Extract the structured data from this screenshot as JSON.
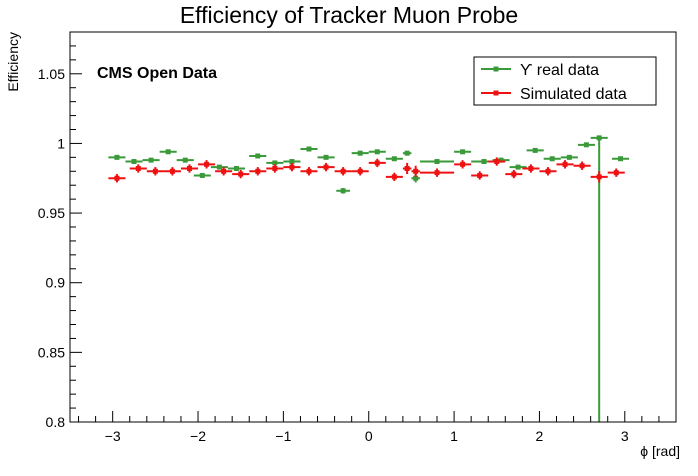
{
  "chart_data": {
    "type": "scatter",
    "title": "Efficiency of Tracker Muon Probe",
    "xlabel": "ϕ [rad]",
    "ylabel": "Efficiency",
    "xlim": [
      -3.5,
      3.6
    ],
    "ylim": [
      0.8,
      1.08
    ],
    "x_ticks": [
      -3,
      -2,
      -1,
      0,
      1,
      2,
      3
    ],
    "x_tick_labels": [
      "−3",
      "−2",
      "−1",
      "0",
      "1",
      "2",
      "3"
    ],
    "y_ticks": [
      0.8,
      0.85,
      0.9,
      0.95,
      1,
      1.05
    ],
    "y_tick_labels": [
      "0.8",
      "0.85",
      "0.9",
      "0.95",
      "1",
      "1.05"
    ],
    "grid": false,
    "legend_position": "top-right",
    "annotation": "CMS Open Data",
    "series": [
      {
        "name": "ϒ real data",
        "color": "#3a9a3a",
        "points": [
          {
            "x": -2.95,
            "y": 0.99,
            "xerr": 0.1,
            "yerr_lo": 0.001,
            "yerr_hi": 0.001
          },
          {
            "x": -2.75,
            "y": 0.987,
            "xerr": 0.1,
            "yerr_lo": 0.001,
            "yerr_hi": 0.001
          },
          {
            "x": -2.55,
            "y": 0.988,
            "xerr": 0.1,
            "yerr_lo": 0.001,
            "yerr_hi": 0.001
          },
          {
            "x": -2.35,
            "y": 0.994,
            "xerr": 0.1,
            "yerr_lo": 0.001,
            "yerr_hi": 0.001
          },
          {
            "x": -2.15,
            "y": 0.988,
            "xerr": 0.1,
            "yerr_lo": 0.001,
            "yerr_hi": 0.001
          },
          {
            "x": -1.95,
            "y": 0.977,
            "xerr": 0.1,
            "yerr_lo": 0.001,
            "yerr_hi": 0.001
          },
          {
            "x": -1.75,
            "y": 0.983,
            "xerr": 0.1,
            "yerr_lo": 0.001,
            "yerr_hi": 0.001
          },
          {
            "x": -1.55,
            "y": 0.982,
            "xerr": 0.1,
            "yerr_lo": 0.001,
            "yerr_hi": 0.001
          },
          {
            "x": -1.3,
            "y": 0.991,
            "xerr": 0.1,
            "yerr_lo": 0.001,
            "yerr_hi": 0.001
          },
          {
            "x": -1.1,
            "y": 0.986,
            "xerr": 0.1,
            "yerr_lo": 0.001,
            "yerr_hi": 0.001
          },
          {
            "x": -0.9,
            "y": 0.987,
            "xerr": 0.1,
            "yerr_lo": 0.001,
            "yerr_hi": 0.001
          },
          {
            "x": -0.7,
            "y": 0.996,
            "xerr": 0.1,
            "yerr_lo": 0.001,
            "yerr_hi": 0.001
          },
          {
            "x": -0.5,
            "y": 0.99,
            "xerr": 0.1,
            "yerr_lo": 0.001,
            "yerr_hi": 0.001
          },
          {
            "x": -0.3,
            "y": 0.966,
            "xerr": 0.08,
            "yerr_lo": 0.002,
            "yerr_hi": 0.002
          },
          {
            "x": -0.1,
            "y": 0.993,
            "xerr": 0.1,
            "yerr_lo": 0.001,
            "yerr_hi": 0.001
          },
          {
            "x": 0.1,
            "y": 0.994,
            "xerr": 0.1,
            "yerr_lo": 0.001,
            "yerr_hi": 0.001
          },
          {
            "x": 0.3,
            "y": 0.989,
            "xerr": 0.1,
            "yerr_lo": 0.001,
            "yerr_hi": 0.001
          },
          {
            "x": 0.45,
            "y": 0.993,
            "xerr": 0.05,
            "yerr_lo": 0.001,
            "yerr_hi": 0.001
          },
          {
            "x": 0.55,
            "y": 0.975,
            "xerr": 0.05,
            "yerr_lo": 0.003,
            "yerr_hi": 0.003
          },
          {
            "x": 0.8,
            "y": 0.987,
            "xerr": 0.2,
            "yerr_lo": 0.001,
            "yerr_hi": 0.001
          },
          {
            "x": 1.1,
            "y": 0.994,
            "xerr": 0.1,
            "yerr_lo": 0.001,
            "yerr_hi": 0.001
          },
          {
            "x": 1.35,
            "y": 0.987,
            "xerr": 0.15,
            "yerr_lo": 0.001,
            "yerr_hi": 0.001
          },
          {
            "x": 1.55,
            "y": 0.988,
            "xerr": 0.1,
            "yerr_lo": 0.001,
            "yerr_hi": 0.001
          },
          {
            "x": 1.75,
            "y": 0.983,
            "xerr": 0.1,
            "yerr_lo": 0.001,
            "yerr_hi": 0.001
          },
          {
            "x": 1.95,
            "y": 0.995,
            "xerr": 0.1,
            "yerr_lo": 0.001,
            "yerr_hi": 0.001
          },
          {
            "x": 2.15,
            "y": 0.989,
            "xerr": 0.1,
            "yerr_lo": 0.001,
            "yerr_hi": 0.001
          },
          {
            "x": 2.35,
            "y": 0.99,
            "xerr": 0.1,
            "yerr_lo": 0.001,
            "yerr_hi": 0.001
          },
          {
            "x": 2.55,
            "y": 0.999,
            "xerr": 0.1,
            "yerr_lo": 0.001,
            "yerr_hi": 0.001
          },
          {
            "x": 2.7,
            "y": 1.004,
            "xerr": 0.1,
            "yerr_lo": 0.21,
            "yerr_hi": 0.001
          },
          {
            "x": 2.95,
            "y": 0.989,
            "xerr": 0.1,
            "yerr_lo": 0.001,
            "yerr_hi": 0.001
          }
        ]
      },
      {
        "name": "Simulated data",
        "color": "#ee1111",
        "points": [
          {
            "x": -2.95,
            "y": 0.975,
            "xerr": 0.1,
            "yerr_lo": 0.003,
            "yerr_hi": 0.003
          },
          {
            "x": -2.7,
            "y": 0.982,
            "xerr": 0.1,
            "yerr_lo": 0.003,
            "yerr_hi": 0.003
          },
          {
            "x": -2.5,
            "y": 0.98,
            "xerr": 0.1,
            "yerr_lo": 0.003,
            "yerr_hi": 0.003
          },
          {
            "x": -2.3,
            "y": 0.98,
            "xerr": 0.1,
            "yerr_lo": 0.003,
            "yerr_hi": 0.003
          },
          {
            "x": -2.1,
            "y": 0.982,
            "xerr": 0.1,
            "yerr_lo": 0.003,
            "yerr_hi": 0.003
          },
          {
            "x": -1.9,
            "y": 0.985,
            "xerr": 0.1,
            "yerr_lo": 0.003,
            "yerr_hi": 0.003
          },
          {
            "x": -1.7,
            "y": 0.98,
            "xerr": 0.1,
            "yerr_lo": 0.003,
            "yerr_hi": 0.003
          },
          {
            "x": -1.5,
            "y": 0.978,
            "xerr": 0.1,
            "yerr_lo": 0.003,
            "yerr_hi": 0.003
          },
          {
            "x": -1.3,
            "y": 0.98,
            "xerr": 0.1,
            "yerr_lo": 0.003,
            "yerr_hi": 0.003
          },
          {
            "x": -1.1,
            "y": 0.982,
            "xerr": 0.1,
            "yerr_lo": 0.003,
            "yerr_hi": 0.003
          },
          {
            "x": -0.9,
            "y": 0.983,
            "xerr": 0.1,
            "yerr_lo": 0.003,
            "yerr_hi": 0.003
          },
          {
            "x": -0.7,
            "y": 0.98,
            "xerr": 0.1,
            "yerr_lo": 0.003,
            "yerr_hi": 0.003
          },
          {
            "x": -0.5,
            "y": 0.983,
            "xerr": 0.1,
            "yerr_lo": 0.003,
            "yerr_hi": 0.003
          },
          {
            "x": -0.3,
            "y": 0.98,
            "xerr": 0.1,
            "yerr_lo": 0.003,
            "yerr_hi": 0.003
          },
          {
            "x": -0.1,
            "y": 0.98,
            "xerr": 0.1,
            "yerr_lo": 0.003,
            "yerr_hi": 0.003
          },
          {
            "x": 0.1,
            "y": 0.986,
            "xerr": 0.1,
            "yerr_lo": 0.003,
            "yerr_hi": 0.003
          },
          {
            "x": 0.3,
            "y": 0.976,
            "xerr": 0.1,
            "yerr_lo": 0.003,
            "yerr_hi": 0.003
          },
          {
            "x": 0.45,
            "y": 0.982,
            "xerr": 0.05,
            "yerr_lo": 0.004,
            "yerr_hi": 0.004
          },
          {
            "x": 0.55,
            "y": 0.98,
            "xerr": 0.05,
            "yerr_lo": 0.004,
            "yerr_hi": 0.004
          },
          {
            "x": 0.8,
            "y": 0.979,
            "xerr": 0.2,
            "yerr_lo": 0.003,
            "yerr_hi": 0.003
          },
          {
            "x": 1.1,
            "y": 0.985,
            "xerr": 0.1,
            "yerr_lo": 0.003,
            "yerr_hi": 0.003
          },
          {
            "x": 1.3,
            "y": 0.977,
            "xerr": 0.1,
            "yerr_lo": 0.003,
            "yerr_hi": 0.003
          },
          {
            "x": 1.5,
            "y": 0.987,
            "xerr": 0.1,
            "yerr_lo": 0.003,
            "yerr_hi": 0.003
          },
          {
            "x": 1.7,
            "y": 0.978,
            "xerr": 0.1,
            "yerr_lo": 0.003,
            "yerr_hi": 0.003
          },
          {
            "x": 1.9,
            "y": 0.982,
            "xerr": 0.1,
            "yerr_lo": 0.003,
            "yerr_hi": 0.003
          },
          {
            "x": 2.1,
            "y": 0.98,
            "xerr": 0.1,
            "yerr_lo": 0.003,
            "yerr_hi": 0.003
          },
          {
            "x": 2.3,
            "y": 0.985,
            "xerr": 0.1,
            "yerr_lo": 0.003,
            "yerr_hi": 0.003
          },
          {
            "x": 2.5,
            "y": 0.984,
            "xerr": 0.1,
            "yerr_lo": 0.003,
            "yerr_hi": 0.003
          },
          {
            "x": 2.7,
            "y": 0.976,
            "xerr": 0.1,
            "yerr_lo": 0.004,
            "yerr_hi": 0.004
          },
          {
            "x": 2.9,
            "y": 0.979,
            "xerr": 0.1,
            "yerr_lo": 0.003,
            "yerr_hi": 0.003
          }
        ]
      }
    ]
  }
}
